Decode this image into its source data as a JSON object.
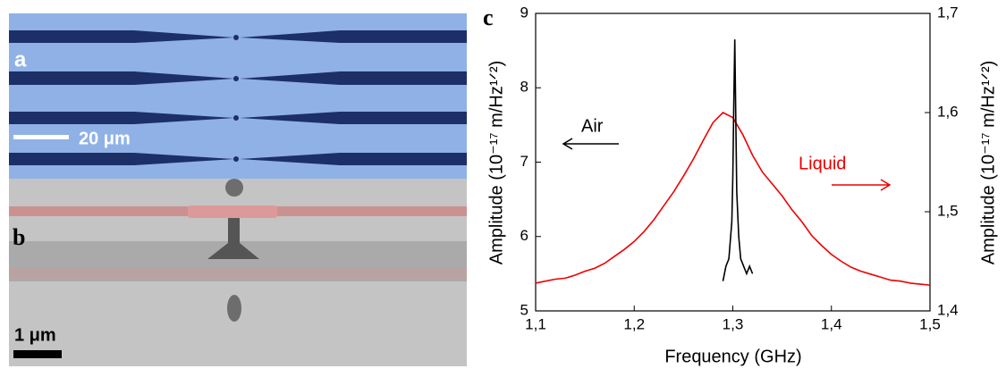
{
  "figure": {
    "panel_labels": [
      "a",
      "b"
    ],
    "scale_bars": [
      "20 μm",
      "1 μm"
    ]
  },
  "chart_data": {
    "type": "line",
    "panel_label": "c",
    "xlabel": "Frequency (GHz)",
    "ylabel": "Amplitude (10⁻¹⁷ m/Hz¹ᐟ²)",
    "y2label": "Amplitude (10⁻¹⁷ m/Hz¹ᐟ²)",
    "xlim": [
      1.1,
      1.5
    ],
    "xticks": [
      {
        "value": 1.1,
        "label": "1,1"
      },
      {
        "value": 1.2,
        "label": "1,2"
      },
      {
        "value": 1.3,
        "label": "1,3"
      },
      {
        "value": 1.4,
        "label": "1,4"
      },
      {
        "value": 1.5,
        "label": "1,5"
      }
    ],
    "ylim": [
      5,
      9
    ],
    "yticks": [
      5,
      6,
      7,
      8,
      9
    ],
    "y2lim": [
      1.4,
      1.7
    ],
    "y2ticks": [
      {
        "value": 1.4,
        "label": "1,4"
      },
      {
        "value": 1.5,
        "label": "1,5"
      },
      {
        "value": 1.6,
        "label": "1,6"
      },
      {
        "value": 1.7,
        "label": "1,7"
      }
    ],
    "annotations": [
      "Air",
      "Liquid"
    ],
    "series": [
      {
        "name": "Liquid",
        "color": "#ee0000",
        "axis": "y2",
        "x": [
          1.1,
          1.11,
          1.12,
          1.13,
          1.14,
          1.15,
          1.16,
          1.17,
          1.18,
          1.19,
          1.2,
          1.21,
          1.22,
          1.23,
          1.24,
          1.25,
          1.26,
          1.27,
          1.28,
          1.29,
          1.3,
          1.31,
          1.32,
          1.33,
          1.34,
          1.35,
          1.36,
          1.37,
          1.38,
          1.39,
          1.4,
          1.41,
          1.42,
          1.43,
          1.44,
          1.45,
          1.46,
          1.47,
          1.48,
          1.49,
          1.5
        ],
        "values": [
          1.428,
          1.43,
          1.432,
          1.433,
          1.436,
          1.44,
          1.443,
          1.448,
          1.455,
          1.462,
          1.47,
          1.48,
          1.492,
          1.506,
          1.52,
          1.536,
          1.553,
          1.572,
          1.59,
          1.6,
          1.595,
          1.578,
          1.557,
          1.54,
          1.528,
          1.516,
          1.502,
          1.49,
          1.476,
          1.466,
          1.457,
          1.45,
          1.444,
          1.44,
          1.437,
          1.434,
          1.431,
          1.43,
          1.428,
          1.427,
          1.426
        ]
      },
      {
        "name": "Air",
        "color": "#000000",
        "x": [
          1.29,
          1.293,
          1.296,
          1.299,
          1.3,
          1.301,
          1.302,
          1.303,
          1.304,
          1.306,
          1.308,
          1.311,
          1.314,
          1.317,
          1.32
        ],
        "values": [
          5.4,
          5.6,
          5.7,
          6.2,
          6.8,
          7.8,
          8.65,
          7.6,
          6.6,
          6.0,
          5.7,
          5.6,
          5.5,
          5.6,
          5.5
        ]
      }
    ]
  }
}
